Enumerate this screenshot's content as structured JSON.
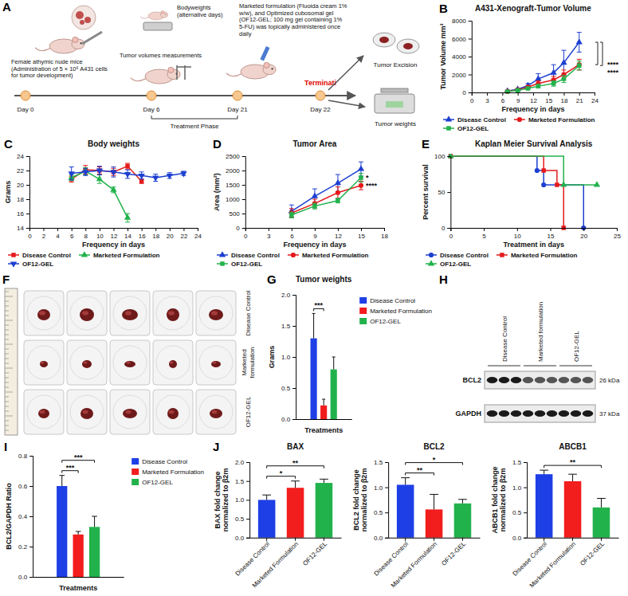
{
  "chart_data": [
    {
      "panel": "B",
      "type": "line",
      "title": "A431-Xenograft-Tumor Volume",
      "x_label": "Frequency in days",
      "y_label": "Tumor Volume mm³",
      "xlim": [
        0,
        24
      ],
      "xticks": [
        0,
        3,
        6,
        9,
        12,
        15,
        18,
        21,
        24
      ],
      "ylim": [
        0,
        8000
      ],
      "yticks": [
        0,
        2000,
        4000,
        6000,
        8000
      ],
      "legend": "bottom",
      "x": [
        7,
        9,
        11,
        13,
        16,
        18,
        21
      ],
      "series": [
        {
          "name": "Disease Control",
          "color": "#1c3fd0",
          "marker": "triangle",
          "values": [
            150,
            350,
            750,
            1500,
            2200,
            3300,
            5600
          ],
          "errors": [
            50,
            100,
            250,
            600,
            900,
            1400,
            1100
          ]
        },
        {
          "name": "Marketed Formulation",
          "color": "#e41a1c",
          "marker": "circle",
          "values": [
            120,
            300,
            600,
            1000,
            1400,
            2000,
            3100
          ],
          "errors": [
            40,
            80,
            150,
            300,
            400,
            500,
            600
          ]
        },
        {
          "name": "OF12-GEL",
          "color": "#22b24c",
          "marker": "square",
          "values": [
            100,
            250,
            450,
            700,
            1000,
            1500,
            3000
          ],
          "errors": [
            30,
            70,
            120,
            200,
            300,
            400,
            500
          ]
        }
      ],
      "annotations": [
        {
          "text": "****",
          "between": [
            "Disease Control",
            "Marketed Formulation"
          ]
        },
        {
          "text": "****",
          "between": [
            "Disease Control",
            "OF12-GEL"
          ]
        }
      ]
    },
    {
      "panel": "C",
      "type": "line",
      "title": "Body weights",
      "x_label": "Frequency in days",
      "y_label": "Grams",
      "xlim": [
        0,
        24
      ],
      "xticks": [
        0,
        2,
        4,
        6,
        8,
        10,
        12,
        14,
        16,
        18,
        20,
        22,
        24
      ],
      "ylim": [
        14,
        24
      ],
      "yticks": [
        14,
        16,
        18,
        20,
        22,
        24
      ],
      "legend": "bottom",
      "series": [
        {
          "name": "Disease Control",
          "color": "#e41a1c",
          "marker": "square",
          "x": [
            6,
            8,
            10,
            12,
            14,
            16
          ],
          "values": [
            20.8,
            22.1,
            22.0,
            21.8,
            22.6,
            20.5
          ],
          "errors": [
            0.4,
            0.6,
            0.5,
            0.5,
            0.4,
            0.3
          ]
        },
        {
          "name": "Marketed Formulation",
          "color": "#22b24c",
          "marker": "triangle",
          "x": [
            6,
            8,
            10,
            12,
            14
          ],
          "values": [
            21.0,
            21.9,
            20.8,
            19.3,
            15.4
          ],
          "errors": [
            0.4,
            0.5,
            0.6,
            0.4,
            0.6
          ]
        },
        {
          "name": "OF12-GEL",
          "color": "#1c3fd0",
          "marker": "triangle-down",
          "x": [
            6,
            8,
            10,
            12,
            14,
            16,
            18,
            20,
            22
          ],
          "values": [
            21.6,
            21.8,
            22.0,
            21.8,
            21.5,
            21.3,
            21.0,
            21.3,
            21.6
          ],
          "errors": [
            0.9,
            0.5,
            0.6,
            0.7,
            0.6,
            0.5,
            0.5,
            0.4,
            0.3
          ]
        }
      ]
    },
    {
      "panel": "D",
      "type": "line",
      "title": "Tumor Area",
      "x_label": "Frequency in days",
      "y_label": "Area (mm²)",
      "xlim": [
        0,
        18
      ],
      "xticks": [
        0,
        3,
        6,
        9,
        12,
        15,
        18
      ],
      "ylim": [
        0,
        2500
      ],
      "yticks": [
        0,
        500,
        1000,
        1500,
        2000,
        2500
      ],
      "legend": "bottom",
      "x": [
        6,
        9,
        12,
        15
      ],
      "series": [
        {
          "name": "Disease Control",
          "color": "#1c3fd0",
          "marker": "triangle",
          "values": [
            580,
            1100,
            1560,
            2050
          ],
          "errors": [
            220,
            260,
            300,
            250
          ]
        },
        {
          "name": "Marketed Formulation",
          "color": "#e41a1c",
          "marker": "circle",
          "values": [
            520,
            850,
            1230,
            1480
          ],
          "errors": [
            150,
            150,
            200,
            150
          ]
        },
        {
          "name": "OF12-GEL",
          "color": "#22b24c",
          "marker": "square",
          "values": [
            450,
            760,
            950,
            1750
          ],
          "errors": [
            100,
            100,
            80,
            150
          ]
        }
      ],
      "annotations": [
        {
          "text": "*",
          "series": "OF12-GEL"
        },
        {
          "text": "****",
          "series": "Marketed Formulation"
        }
      ]
    },
    {
      "panel": "E",
      "type": "line",
      "title": "Kaplan Meier Survival Analysis",
      "x_label": "Treatment in days",
      "y_label": "Percent survival",
      "xlim": [
        0,
        25
      ],
      "xticks": [
        0,
        5,
        10,
        15,
        20,
        25
      ],
      "ylim": [
        0,
        100
      ],
      "yticks": [
        0,
        50,
        100
      ],
      "legend": "bottom",
      "line_style": "step",
      "series": [
        {
          "name": "Disease Control",
          "color": "#1c3fd0",
          "marker": "circle",
          "x": [
            0,
            13,
            14,
            20
          ],
          "values": [
            100,
            80,
            60,
            0
          ]
        },
        {
          "name": "Marketed Formulation",
          "color": "#e41a1c",
          "marker": "square",
          "x": [
            0,
            14,
            16,
            17
          ],
          "values": [
            100,
            80,
            60,
            0
          ]
        },
        {
          "name": "OF12-GEL",
          "color": "#22b24c",
          "marker": "triangle",
          "x": [
            0,
            17,
            22
          ],
          "values": [
            100,
            60,
            60
          ]
        }
      ]
    },
    {
      "panel": "G",
      "type": "bar",
      "title": "Tumor weights",
      "x_label": "Treatments",
      "y_label": "Grams",
      "categories": [
        null
      ],
      "ylim": [
        0,
        2
      ],
      "yticks": [
        {
          "value": 0,
          "label": "0.0"
        },
        0.5,
        {
          "value": 1,
          "label": "1.0"
        },
        1.5,
        {
          "value": 2,
          "label": "2.0"
        }
      ],
      "legend": "right",
      "series": [
        {
          "name": "Disease Control",
          "color": "#1e3fe6",
          "values": [
            1.3
          ],
          "errors": [
            0.4
          ]
        },
        {
          "name": "Marketed Formulation",
          "color": "#f21d1d",
          "values": [
            0.22
          ],
          "errors": [
            0.1
          ]
        },
        {
          "name": "OF12-GEL",
          "color": "#22b24c",
          "values": [
            0.8
          ],
          "errors": [
            0.2
          ]
        }
      ],
      "annotations": [
        {
          "text": "***",
          "between": [
            "Disease Control",
            "Marketed Formulation"
          ]
        }
      ]
    },
    {
      "panel": "I",
      "type": "bar",
      "x_label": "Treatments",
      "y_label": "BCL2/GAPDH Ratio",
      "categories": [
        null
      ],
      "ylim": [
        0,
        0.8
      ],
      "yticks": [
        {
          "value": 0,
          "label": "0.0"
        },
        0.2,
        0.4,
        0.6,
        0.8
      ],
      "legend": "right",
      "series": [
        {
          "name": "Disease Control",
          "color": "#1e3fe6",
          "values": [
            0.6
          ],
          "errors": [
            0.07
          ]
        },
        {
          "name": "Marketed Formulation",
          "color": "#f21d1d",
          "values": [
            0.28
          ],
          "errors": [
            0.02
          ]
        },
        {
          "name": "OF12-GEL",
          "color": "#22b24c",
          "values": [
            0.33
          ],
          "errors": [
            0.07
          ]
        }
      ],
      "annotations": [
        {
          "text": "***",
          "between": [
            "Disease Control",
            "Marketed Formulation"
          ]
        },
        {
          "text": "***",
          "between": [
            "Disease Control",
            "OF12-GEL"
          ]
        }
      ]
    },
    {
      "panel": "J",
      "type": "bar",
      "title": "BAX",
      "y_label": "BAX fold change normalized to β2m",
      "categories": [
        "Disease Control",
        "Marketed Formulation",
        "OF12-GEL"
      ],
      "values": [
        1.0,
        1.32,
        1.45
      ],
      "errors": [
        0.13,
        0.18,
        0.1
      ],
      "colors": [
        "#1e3fe6",
        "#f21d1d",
        "#22b24c"
      ],
      "ylim": [
        0,
        2
      ],
      "yticks": [
        {
          "value": 0,
          "label": "0.0"
        },
        0.5,
        {
          "value": 1,
          "label": "1.0"
        },
        1.5,
        {
          "value": 2,
          "label": "2.0"
        }
      ],
      "annotations": [
        {
          "text": "*",
          "between": [
            "Disease Control",
            "Marketed Formulation"
          ]
        },
        {
          "text": "**",
          "between": [
            "Disease Control",
            "OF12-GEL"
          ]
        }
      ]
    },
    {
      "type": "bar",
      "title": "BCL2",
      "y_label": "BCL2 fold change normalized to β2m",
      "categories": [
        "Disease Control",
        "Marketed Formulation",
        "OF12-GEL"
      ],
      "values": [
        1.05,
        0.56,
        0.68
      ],
      "errors": [
        0.14,
        0.3,
        0.08
      ],
      "colors": [
        "#1e3fe6",
        "#f21d1d",
        "#22b24c"
      ],
      "ylim": [
        0,
        1.5
      ],
      "yticks": [
        {
          "value": 0,
          "label": "0.0"
        },
        0.5,
        {
          "value": 1,
          "label": "1.0"
        },
        1.5
      ],
      "annotations": [
        {
          "text": "**",
          "between": [
            "Disease Control",
            "Marketed Formulation"
          ]
        },
        {
          "text": "*",
          "between": [
            "Disease Control",
            "OF12-GEL"
          ]
        }
      ]
    },
    {
      "type": "bar",
      "title": "ABCB1",
      "y_label": "ABCB1 fold change normalized to β2m",
      "categories": [
        "Disease Control",
        "Marketed Formulation",
        "OF12-GEL"
      ],
      "values": [
        1.26,
        1.12,
        0.6
      ],
      "errors": [
        0.08,
        0.14,
        0.18
      ],
      "colors": [
        "#1e3fe6",
        "#f21d1d",
        "#22b24c"
      ],
      "ylim": [
        0,
        1.5
      ],
      "yticks": [
        {
          "value": 0,
          "label": "0.0"
        },
        0.5,
        {
          "value": 1,
          "label": "1.0"
        },
        1.5
      ],
      "annotations": [
        {
          "text": "**",
          "between": [
            "Disease Control",
            "OF12-GEL"
          ]
        }
      ]
    }
  ],
  "diagram": {
    "panel": "A",
    "mice_text": "Female athymic nude mice (Administration of 5 × 10⁶ A431 cells for tumor development)",
    "bodyweights": "Bodyweights (alternative days)",
    "tumor_volumes": "Tumor volumes measurements",
    "treatment": "Marketed formulation (Fluoida cream 1% w/w), and Optimized cubosomal gel (OF12-GEL; 100 mg gel containing 1% 5-FU) was topically administered once daily",
    "timeline": [
      "Day 0",
      "Day 6",
      "Day 21",
      "Day 22"
    ],
    "termination": "Terminati",
    "phase": "Treatment Phase",
    "outcomes": [
      "Tumor Excision",
      "Tumor weights"
    ]
  },
  "photos": {
    "panel": "F",
    "rows": [
      "Disease Control",
      "Marketed formulation",
      "OF12-GEL"
    ],
    "columns": 5
  },
  "blot": {
    "panel": "H",
    "groups": [
      "Disease Control",
      "Marketed formulation",
      "OF12-GEL"
    ],
    "lanes_per_group": 3,
    "bands": [
      {
        "protein": "BCL2",
        "size": "26 kDa"
      },
      {
        "protein": "GAPDH",
        "size": "37 kDa"
      }
    ]
  }
}
